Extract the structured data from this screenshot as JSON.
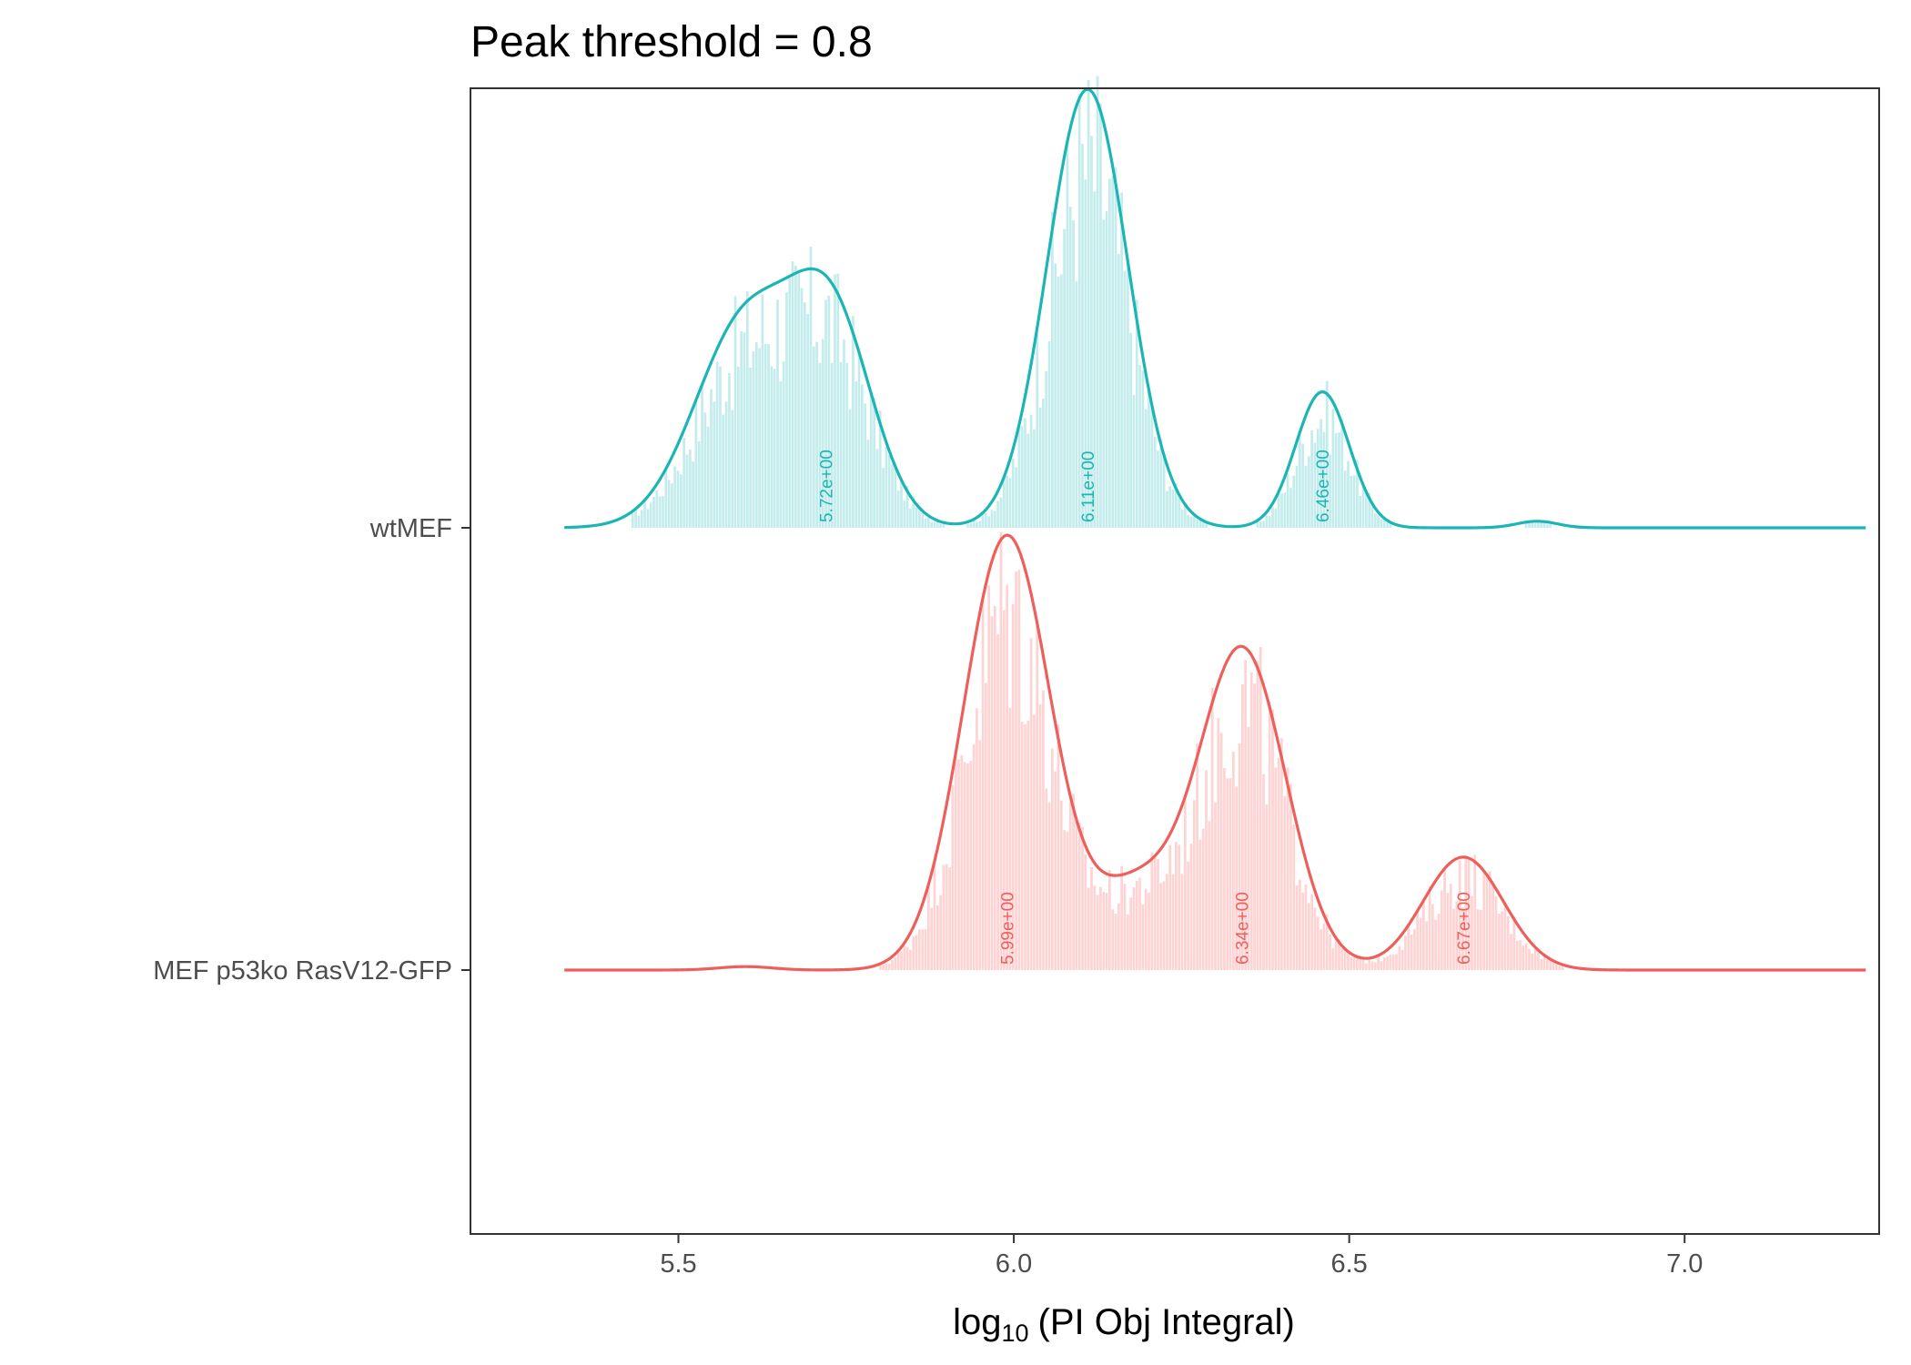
{
  "chart_data": {
    "type": "ridgeline",
    "title": "Peak threshold = 0.8",
    "xlabel": {
      "base": "log",
      "subscript": "10",
      "text": "(PI Obj Integral)"
    },
    "ylabel": "",
    "xlim": [
      5.19,
      7.29
    ],
    "x_ticks": [
      {
        "value": 5.5,
        "label": "5.5"
      },
      {
        "value": 6.0,
        "label": "6.0"
      },
      {
        "value": 6.5,
        "label": "6.5"
      },
      {
        "value": 7.0,
        "label": "7.0"
      }
    ],
    "grid": false,
    "legend": "none",
    "series": [
      {
        "name": "wtMEF",
        "color": "#1bb5b5",
        "fill": "#c4ecec",
        "range": [
          5.33,
          7.27
        ],
        "components": [
          {
            "mu": 5.6,
            "sigma": 0.075,
            "amp": 0.47
          },
          {
            "mu": 5.73,
            "sigma": 0.06,
            "amp": 0.45
          },
          {
            "mu": 6.11,
            "sigma": 0.06,
            "amp": 1.0
          },
          {
            "mu": 6.46,
            "sigma": 0.04,
            "amp": 0.31
          },
          {
            "mu": 6.78,
            "sigma": 0.03,
            "amp": 0.015
          }
        ],
        "peaks": [
          {
            "x": 5.72,
            "label": "5.72e+00"
          },
          {
            "x": 6.11,
            "label": "6.11e+00"
          },
          {
            "x": 6.46,
            "label": "6.46e+00"
          }
        ]
      },
      {
        "name": "MEF p53ko RasV12-GFP",
        "color": "#ee5f5b",
        "fill": "#fdd4d3",
        "range": [
          5.33,
          7.27
        ],
        "components": [
          {
            "mu": 5.99,
            "sigma": 0.065,
            "amp": 1.0
          },
          {
            "mu": 6.18,
            "sigma": 0.06,
            "amp": 0.18
          },
          {
            "mu": 6.34,
            "sigma": 0.065,
            "amp": 0.74
          },
          {
            "mu": 6.67,
            "sigma": 0.06,
            "amp": 0.26
          },
          {
            "mu": 5.6,
            "sigma": 0.04,
            "amp": 0.008
          }
        ],
        "peaks": [
          {
            "x": 5.99,
            "label": "5.99e+00"
          },
          {
            "x": 6.34,
            "label": "6.34e+00"
          },
          {
            "x": 6.67,
            "label": "6.67e+00"
          }
        ]
      }
    ]
  }
}
